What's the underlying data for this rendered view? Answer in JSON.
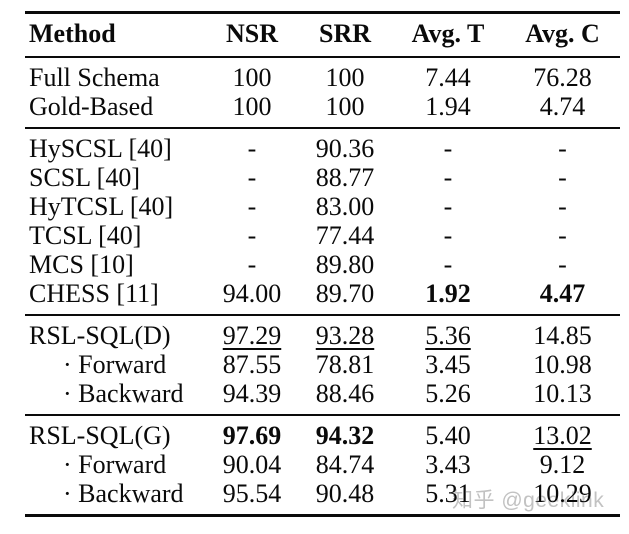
{
  "colors": {
    "text": "#0a0a0a",
    "rule": "#0a0a0a",
    "background": "#ffffff",
    "watermark": "#c2c2c2"
  },
  "watermark": {
    "text": "知乎 @geeklink"
  },
  "table": {
    "headers": [
      "Method",
      "NSR",
      "SRR",
      "Avg. T",
      "Avg. C"
    ],
    "sections": [
      {
        "rows": [
          {
            "method": "Full Schema",
            "indent": false,
            "values": [
              "100",
              "100",
              "7.44",
              "76.28"
            ],
            "styles": [
              "",
              "",
              "",
              ""
            ]
          },
          {
            "method": "Gold-Based",
            "indent": false,
            "values": [
              "100",
              "100",
              "1.94",
              "4.74"
            ],
            "styles": [
              "",
              "",
              "",
              ""
            ]
          }
        ]
      },
      {
        "rows": [
          {
            "method": "HySCSL [40]",
            "indent": false,
            "values": [
              "-",
              "90.36",
              "-",
              "-"
            ],
            "styles": [
              "",
              "",
              "",
              ""
            ]
          },
          {
            "method": "SCSL [40]",
            "indent": false,
            "values": [
              "-",
              "88.77",
              "-",
              "-"
            ],
            "styles": [
              "",
              "",
              "",
              ""
            ]
          },
          {
            "method": "HyTCSL [40]",
            "indent": false,
            "values": [
              "-",
              "83.00",
              "-",
              "-"
            ],
            "styles": [
              "",
              "",
              "",
              ""
            ]
          },
          {
            "method": "TCSL [40]",
            "indent": false,
            "values": [
              "-",
              "77.44",
              "-",
              "-"
            ],
            "styles": [
              "",
              "",
              "",
              ""
            ]
          },
          {
            "method": "MCS [10]",
            "indent": false,
            "values": [
              "-",
              "89.80",
              "-",
              "-"
            ],
            "styles": [
              "",
              "",
              "",
              ""
            ]
          },
          {
            "method": "CHESS [11]",
            "indent": false,
            "values": [
              "94.00",
              "89.70",
              "1.92",
              "4.47"
            ],
            "styles": [
              "",
              "",
              "b",
              "b"
            ]
          }
        ]
      },
      {
        "rows": [
          {
            "method": "RSL-SQL(D)",
            "indent": false,
            "values": [
              "97.29",
              "93.28",
              "5.36",
              "14.85"
            ],
            "styles": [
              "u",
              "u",
              "u",
              ""
            ]
          },
          {
            "method": "· Forward",
            "indent": true,
            "values": [
              "87.55",
              "78.81",
              "3.45",
              "10.98"
            ],
            "styles": [
              "",
              "",
              "",
              ""
            ]
          },
          {
            "method": "· Backward",
            "indent": true,
            "values": [
              "94.39",
              "88.46",
              "5.26",
              "10.13"
            ],
            "styles": [
              "",
              "",
              "",
              ""
            ]
          }
        ]
      },
      {
        "rows": [
          {
            "method": "RSL-SQL(G)",
            "indent": false,
            "values": [
              "97.69",
              "94.32",
              "5.40",
              "13.02"
            ],
            "styles": [
              "b",
              "b",
              "",
              "u"
            ]
          },
          {
            "method": "· Forward",
            "indent": true,
            "values": [
              "90.04",
              "84.74",
              "3.43",
              "9.12"
            ],
            "styles": [
              "",
              "",
              "",
              ""
            ]
          },
          {
            "method": "· Backward",
            "indent": true,
            "values": [
              "95.54",
              "90.48",
              "5.31",
              "10.29"
            ],
            "styles": [
              "",
              "",
              "",
              ""
            ]
          }
        ]
      }
    ]
  }
}
